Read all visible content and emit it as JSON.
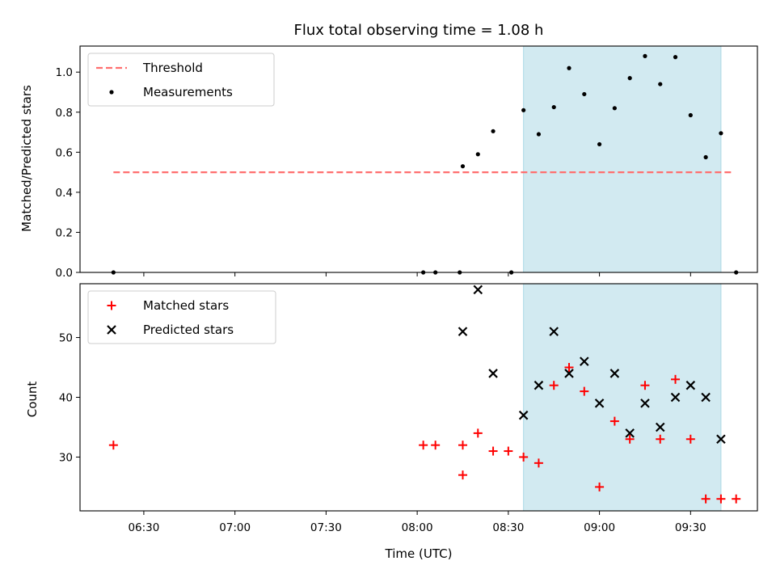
{
  "chart_data": {
    "title": "Flux total observing time = 1.08 h",
    "type": "scatter",
    "observing_window": {
      "start": "08:35",
      "end": "09:40",
      "color": "#add8e6"
    },
    "x_axis": {
      "label": "Time (UTC)",
      "ticks": [
        "06:30",
        "07:00",
        "07:30",
        "08:00",
        "08:30",
        "09:00",
        "09:30"
      ],
      "range": [
        "06:09",
        "09:52"
      ]
    },
    "panels": [
      {
        "ylabel": "Matched/Predicted stars",
        "ylim": [
          0,
          1.13
        ],
        "yticks": [
          0.0,
          0.2,
          0.4,
          0.6,
          0.8,
          1.0
        ],
        "legend": {
          "position": "upper-left"
        },
        "series": [
          {
            "name": "Threshold",
            "kind": "dashed-line",
            "color": "#ff6f6f",
            "x": [
              "06:20",
              "09:44"
            ],
            "y": [
              0.5,
              0.5
            ]
          },
          {
            "name": "Measurements",
            "kind": "dot",
            "color": "#000000",
            "x": [
              "06:20",
              "08:02",
              "08:06",
              "08:14",
              "08:15",
              "08:20",
              "08:25",
              "08:31",
              "08:35",
              "08:40",
              "08:45",
              "08:50",
              "08:55",
              "09:00",
              "09:05",
              "09:10",
              "09:15",
              "09:20",
              "09:25",
              "09:30",
              "09:35",
              "09:40",
              "09:45"
            ],
            "y": [
              0.0,
              0.0,
              0.0,
              0.0,
              0.53,
              0.59,
              0.705,
              0.0,
              0.81,
              0.69,
              0.825,
              1.02,
              0.89,
              0.64,
              0.82,
              0.97,
              1.08,
              0.94,
              1.075,
              0.785,
              0.575,
              0.695,
              0.0
            ]
          }
        ]
      },
      {
        "ylabel": "Count",
        "ylim": [
          21,
          59
        ],
        "yticks": [
          30,
          40,
          50
        ],
        "legend": {
          "position": "upper-left"
        },
        "series": [
          {
            "name": "Matched stars",
            "kind": "plus",
            "color": "#ff0000",
            "x": [
              "06:20",
              "08:02",
              "08:06",
              "08:15",
              "08:15",
              "08:20",
              "08:25",
              "08:30",
              "08:35",
              "08:40",
              "08:45",
              "08:50",
              "08:55",
              "09:00",
              "09:05",
              "09:10",
              "09:15",
              "09:20",
              "09:25",
              "09:30",
              "09:35",
              "09:40",
              "09:45"
            ],
            "y": [
              32,
              32,
              32,
              32,
              27,
              34,
              31,
              31,
              30,
              29,
              42,
              45,
              41,
              25,
              36,
              33,
              42,
              33,
              43,
              33,
              23,
              23,
              23
            ]
          },
          {
            "name": "Predicted stars",
            "kind": "cross",
            "color": "#000000",
            "x": [
              "08:15",
              "08:20",
              "08:25",
              "08:35",
              "08:40",
              "08:45",
              "08:50",
              "08:55",
              "09:00",
              "09:05",
              "09:10",
              "09:15",
              "09:20",
              "09:25",
              "09:30",
              "09:35",
              "09:40"
            ],
            "y": [
              51,
              58,
              44,
              37,
              42,
              51,
              44,
              46,
              39,
              44,
              34,
              39,
              35,
              40,
              42,
              40,
              33
            ]
          }
        ]
      }
    ]
  }
}
